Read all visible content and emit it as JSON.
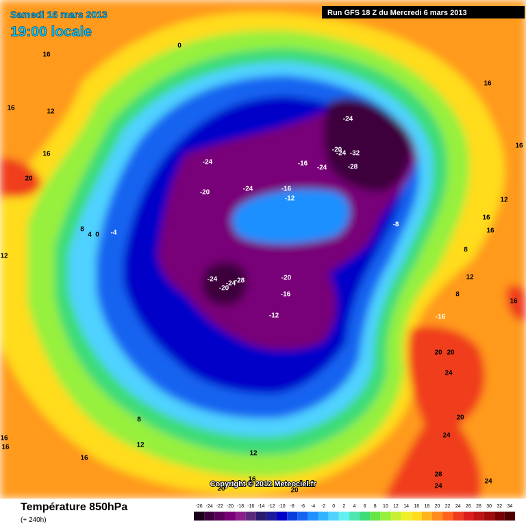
{
  "header": {
    "date": "Samedi 16 mars 2013",
    "time": "19:00 locale",
    "run": "Run GFS 18 Z du Mercredi 6 mars 2013"
  },
  "footer": {
    "title": "Température 850hPa",
    "subtitle": "(+ 240h)",
    "copyright": "Copyright © 2012 Meteociel.fr"
  },
  "legend": {
    "ticks": [
      -26,
      -24,
      -22,
      -20,
      -18,
      -16,
      -14,
      -12,
      -10,
      -8,
      -6,
      -4,
      -2,
      0,
      2,
      4,
      6,
      8,
      10,
      12,
      14,
      16,
      18,
      20,
      22,
      24,
      26,
      28,
      30,
      32,
      34
    ],
    "colors": [
      "#1a001a",
      "#3c003c",
      "#5a005a",
      "#780078",
      "#8c1e8c",
      "#5a2a7a",
      "#2a1a6e",
      "#1a1a9a",
      "#0000c8",
      "#0a3cdc",
      "#1464f0",
      "#1e90ff",
      "#32b4ff",
      "#50d2ff",
      "#64f0f0",
      "#50e6b4",
      "#3cdc78",
      "#64e646",
      "#96f03c",
      "#c8f032",
      "#f0f028",
      "#ffdc1e",
      "#ffb41e",
      "#ff8c1e",
      "#ff641e",
      "#f03c1e",
      "#dc1e1e",
      "#be1414",
      "#a00a0a",
      "#780000",
      "#500000"
    ]
  },
  "contours": [
    16,
    16,
    12,
    16,
    20,
    0,
    8,
    4,
    0,
    -4,
    -24,
    -20,
    -24,
    -16,
    -12,
    -24,
    -20,
    -24,
    -32,
    -28,
    -16,
    -24,
    -8,
    -24,
    -28,
    -24,
    -20,
    -20,
    -16,
    -12,
    16,
    16,
    12,
    16,
    16,
    8,
    12,
    8,
    16,
    -16,
    20,
    20,
    24,
    20,
    24,
    28,
    24,
    24,
    12,
    16,
    16,
    8,
    12,
    16,
    12,
    16,
    20,
    20
  ]
}
